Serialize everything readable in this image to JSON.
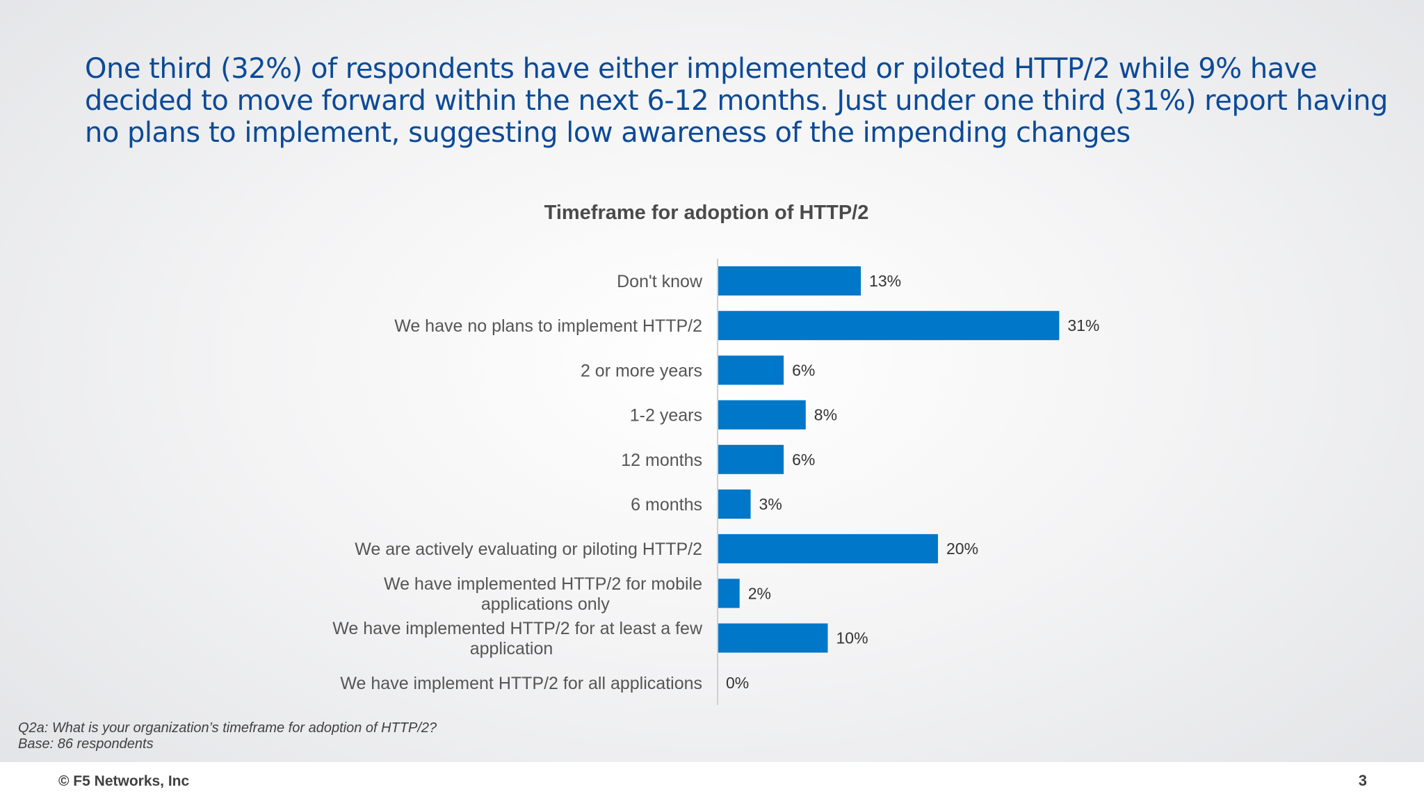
{
  "headline": "One third (32%) of respondents have either implemented or piloted HTTP/2 while 9% have decided to move forward within the next 6-12 months. Just under one third (31%) report having no plans to implement, suggesting low awareness of the impending changes",
  "chart_data": {
    "type": "bar",
    "orientation": "horizontal",
    "title": "Timeframe for adoption of HTTP/2",
    "categories": [
      "Don't know",
      "We have no plans to implement HTTP/2",
      "2 or more years",
      "1-2 years",
      "12 months",
      "6 months",
      "We are actively evaluating or piloting HTTP/2",
      "We have implemented HTTP/2 for mobile applications only",
      "We have implemented HTTP/2 for at least a few application",
      "We have implement HTTP/2 for all applications"
    ],
    "values": [
      13,
      31,
      6,
      8,
      6,
      3,
      20,
      2,
      10,
      0
    ],
    "value_labels": [
      "13%",
      "31%",
      "6%",
      "8%",
      "6%",
      "3%",
      "20%",
      "2%",
      "10%",
      "0%"
    ],
    "unit": "%",
    "bar_color": "#0077c8",
    "grid": false,
    "legend": "none"
  },
  "footnote": {
    "question": "Q2a: What is your organization’s timeframe for adoption of HTTP/2?",
    "base": "Base: 86 respondents"
  },
  "footer": {
    "copyright": "© F5 Networks, Inc",
    "page_number": "3"
  }
}
